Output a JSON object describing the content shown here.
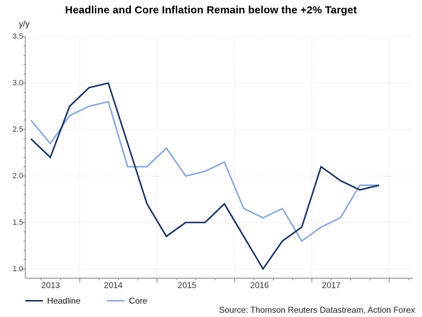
{
  "title": "Headline and Core Inflation Remain below the +2% Target",
  "source": "Source: Thomson Reuters Datastream, Action Forex",
  "chart_data": {
    "type": "line",
    "title": "Headline and Core Inflation Remain below the +2% Target",
    "xlabel": "",
    "ylabel": "y/y",
    "ylim": [
      1.0,
      3.5
    ],
    "y_ticks": [
      3.5,
      3.0,
      2.5,
      2.0,
      1.5,
      1.0
    ],
    "x_year_labels": [
      "2013",
      "2014",
      "2015",
      "2016",
      "2017"
    ],
    "x": [
      "2013 Q2",
      "2013 Q3",
      "2013 Q4",
      "2014 Q1",
      "2014 Q2",
      "2014 Q3",
      "2014 Q4",
      "2015 Q1",
      "2015 Q2",
      "2015 Q3",
      "2015 Q4",
      "2016 Q1",
      "2016 Q2",
      "2016 Q3",
      "2016 Q4",
      "2017 Q1",
      "2017 Q2",
      "2017 Q3",
      "2017 Q4"
    ],
    "series": [
      {
        "name": "Headline",
        "color": "#1F3864",
        "values": [
          2.4,
          2.2,
          2.75,
          2.95,
          3.0,
          2.35,
          1.7,
          1.35,
          1.5,
          1.5,
          1.7,
          1.35,
          1.0,
          1.3,
          1.45,
          2.1,
          1.95,
          1.85,
          1.9
        ]
      },
      {
        "name": "Core",
        "color": "#8FAADC",
        "values": [
          2.6,
          2.35,
          2.65,
          2.75,
          2.8,
          2.1,
          2.1,
          2.3,
          2.0,
          2.05,
          2.15,
          1.65,
          1.55,
          1.65,
          1.3,
          1.45,
          1.55,
          1.9,
          1.9
        ]
      }
    ],
    "grid": {
      "horizontal": true,
      "vertical": true,
      "style": "dotted",
      "color": "#d9d9d9"
    },
    "legend_position": "bottom-left",
    "frequency": "quarterly"
  },
  "colors": {
    "headline_line": "#1F3864",
    "core_line": "#8FAADC",
    "axis": "#8c8c8c",
    "gridline": "#d9d9d9",
    "tick_text": "#404040"
  }
}
